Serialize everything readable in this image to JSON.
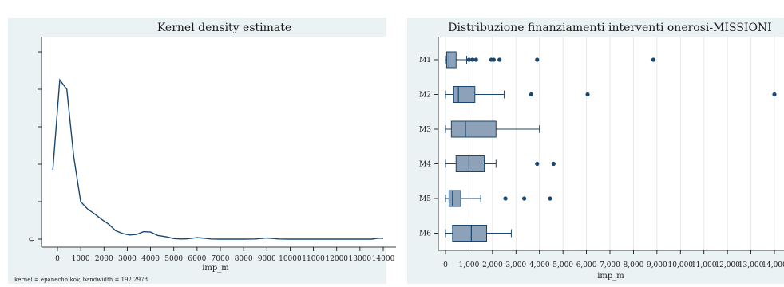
{
  "chart_data": [
    {
      "type": "line",
      "title": "Kernel density estimate",
      "xlabel": "imp_m",
      "ylabel": "",
      "note": "kernel = epanechnikov, bandwidth = 192.2978",
      "xlim": [
        -500,
        14200
      ],
      "ylim": [
        0,
        0.00105
      ],
      "x_ticks": [
        0,
        1000,
        2000,
        3000,
        4000,
        5000,
        6000,
        7000,
        8000,
        9000,
        10000,
        11000,
        12000,
        13000,
        14000
      ],
      "x_tick_labels": [
        "0",
        "1000",
        "2000",
        "3000",
        "4000",
        "5000",
        "6000",
        "7000",
        "8000",
        "9000",
        "10000",
        "11000",
        "12000",
        "13000",
        "14000"
      ],
      "y_ticks": [
        0,
        0.0002,
        0.0004,
        0.0006,
        0.0008,
        0.001
      ],
      "y_tick_labels": [
        "0",
        "",
        "",
        "",
        "",
        ""
      ],
      "grid": false,
      "series": [
        {
          "x": [
            -200,
            100,
            400,
            700,
            1000,
            1300,
            1600,
            1900,
            2200,
            2500,
            2800,
            3100,
            3400,
            3700,
            4000,
            4300,
            4700,
            5000,
            5300,
            5600,
            6000,
            6300,
            6600,
            7000,
            7500,
            8000,
            8500,
            9000,
            9500,
            10000,
            10500,
            11000,
            11500,
            12000,
            12500,
            13000,
            13500,
            13800,
            14000
          ],
          "y": [
            0.00037,
            0.00085,
            0.0008,
            0.00044,
            0.0002,
            0.00016,
            0.000135,
            0.000105,
            8e-05,
            4.5e-05,
            3e-05,
            2.2e-05,
            2.5e-05,
            4e-05,
            3.8e-05,
            2e-05,
            1.2e-05,
            3e-06,
            1e-06,
            2e-06,
            8e-06,
            5e-06,
            1e-06,
            0.0,
            0.0,
            0.0,
            1e-06,
            6e-06,
            1e-06,
            0.0,
            0.0,
            0.0,
            0.0,
            0.0,
            0.0,
            0.0,
            0.0,
            5e-06,
            4e-06
          ]
        }
      ]
    },
    {
      "type": "box",
      "title": "Distribuzione finanziamenti interventi onerosi-MISSIONI",
      "xlabel": "imp_m",
      "ylabel": "",
      "xlim": [
        -500,
        14200
      ],
      "x_ticks": [
        0,
        1000,
        2000,
        3000,
        4000,
        5000,
        6000,
        7000,
        8000,
        9000,
        10000,
        11000,
        12000,
        13000,
        14000
      ],
      "x_tick_labels": [
        "0",
        "1,000",
        "2,000",
        "3,000",
        "4,000",
        "5,000",
        "6,000",
        "7,000",
        "8,000",
        "9,000",
        "10,000",
        "11,000",
        "12,000",
        "13,000",
        "14,000"
      ],
      "grid": true,
      "colors": {
        "box_fill": "#8da1b9",
        "box_stroke": "#1a476f",
        "outlier": "#1a476f",
        "line": "#1a476f"
      },
      "categories": [
        "M1",
        "M2",
        "M3",
        "M4",
        "M5",
        "M6"
      ],
      "boxes": [
        {
          "label": "M1",
          "whisker_low": 0,
          "q1": 50,
          "median": 150,
          "q3": 450,
          "whisker_high": 900,
          "outliers": [
            1000,
            1150,
            1300,
            1950,
            2050,
            2300,
            3900,
            8850
          ]
        },
        {
          "label": "M2",
          "whisker_low": 0,
          "q1": 350,
          "median": 550,
          "q3": 1250,
          "whisker_high": 2500,
          "outliers": [
            3650,
            6050,
            14000
          ]
        },
        {
          "label": "M3",
          "whisker_low": 0,
          "q1": 250,
          "median": 850,
          "q3": 2150,
          "whisker_high": 4000,
          "outliers": []
        },
        {
          "label": "M4",
          "whisker_low": 0,
          "q1": 450,
          "median": 1000,
          "q3": 1650,
          "whisker_high": 2150,
          "outliers": [
            3900,
            4600
          ]
        },
        {
          "label": "M5",
          "whisker_low": 0,
          "q1": 150,
          "median": 300,
          "q3": 650,
          "whisker_high": 1500,
          "outliers": [
            2550,
            3350,
            4450
          ]
        },
        {
          "label": "M6",
          "whisker_low": 0,
          "q1": 300,
          "median": 1100,
          "q3": 1750,
          "whisker_high": 2800,
          "outliers": []
        }
      ]
    }
  ]
}
